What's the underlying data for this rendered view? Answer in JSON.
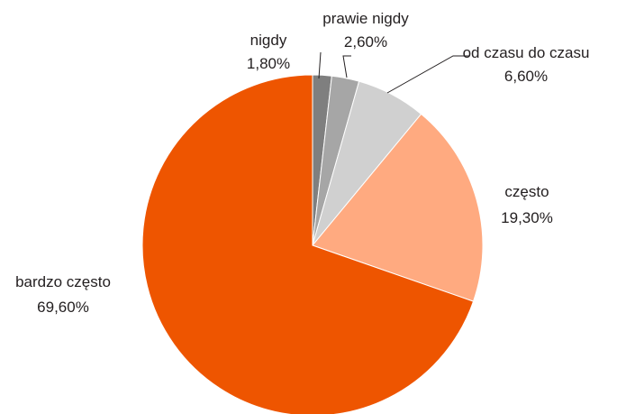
{
  "chart_data": {
    "type": "pie",
    "slices": [
      {
        "label": "nigdy",
        "value": 1.8,
        "value_label": "1,80%",
        "color": "#7f7f7f"
      },
      {
        "label": "prawie nigdy",
        "value": 2.6,
        "value_label": "2,60%",
        "color": "#a6a6a6"
      },
      {
        "label": "od czasu do czasu",
        "value": 6.6,
        "value_label": "6,60%",
        "color": "#d0d0d0"
      },
      {
        "label": "często",
        "value": 19.3,
        "value_label": "19,30%",
        "color": "#ffaa80"
      },
      {
        "label": "bardzo często",
        "value": 69.6,
        "value_label": "69,60%",
        "color": "#ee5500"
      }
    ],
    "start_angle": "12 o'clock",
    "direction": "clockwise",
    "legend": "none",
    "data_labels": "outside"
  }
}
